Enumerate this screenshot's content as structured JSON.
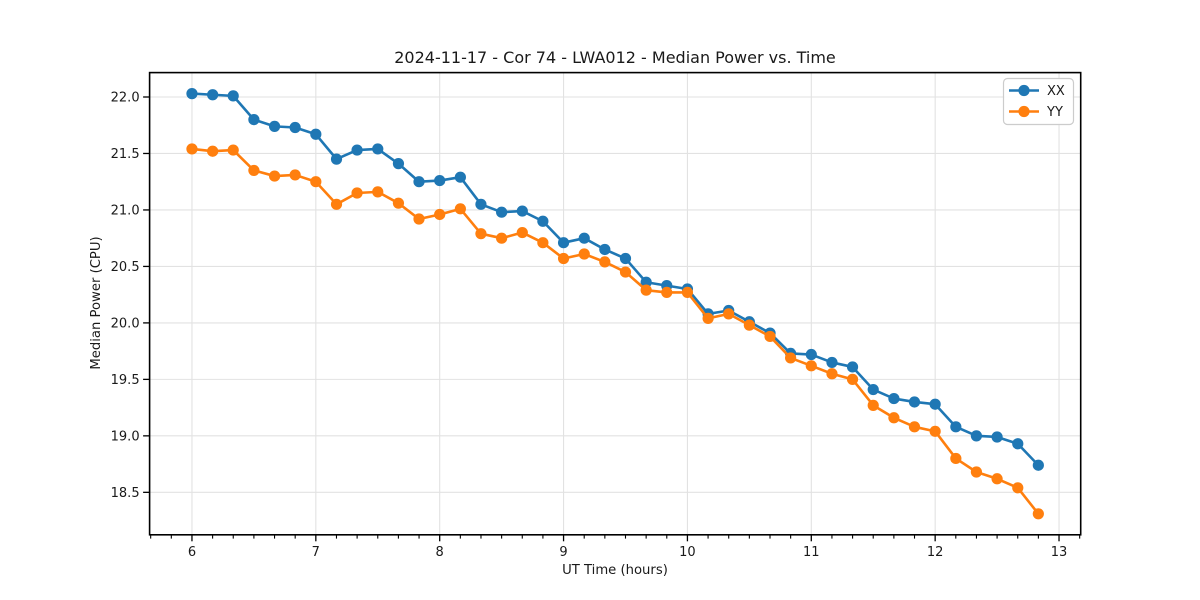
{
  "window": {
    "background": "#ffffff"
  },
  "chart_data": {
    "type": "line",
    "title": "2024-11-17 - Cor 74 - LWA012 - Median Power vs. Time",
    "xlabel": "UT Time (hours)",
    "ylabel": "Median Power (CPU)",
    "grid": true,
    "legend_position": "upper right",
    "marker": "circle",
    "xlim": [
      5.658,
      13.175
    ],
    "ylim": [
      18.124,
      22.216
    ],
    "x_major_ticks": [
      6,
      7,
      8,
      9,
      10,
      11,
      12,
      13
    ],
    "x_minor_tick_step": 0.1666667,
    "y_ticks": [
      18.5,
      19.0,
      19.5,
      20.0,
      20.5,
      21.0,
      21.5,
      22.0
    ],
    "y_tick_labels": [
      "18.5",
      "19.0",
      "19.5",
      "20.0",
      "20.5",
      "21.0",
      "21.5",
      "22.0"
    ],
    "colors": {
      "grid": "#e2e2e2",
      "spine": "#000000",
      "text": "#1a1a1a"
    },
    "x": [
      6.0,
      6.167,
      6.333,
      6.5,
      6.667,
      6.833,
      7.0,
      7.167,
      7.333,
      7.5,
      7.667,
      7.833,
      8.0,
      8.167,
      8.333,
      8.5,
      8.667,
      8.833,
      9.0,
      9.167,
      9.333,
      9.5,
      9.667,
      9.833,
      10.0,
      10.167,
      10.333,
      10.5,
      10.667,
      10.833,
      11.0,
      11.167,
      11.333,
      11.5,
      11.667,
      11.833,
      12.0,
      12.167,
      12.333,
      12.5,
      12.667,
      12.833
    ],
    "series": [
      {
        "name": "XX",
        "color": "#1f77b4",
        "values": [
          22.03,
          22.02,
          22.01,
          21.8,
          21.74,
          21.73,
          21.67,
          21.45,
          21.53,
          21.54,
          21.41,
          21.25,
          21.26,
          21.29,
          21.05,
          20.98,
          20.99,
          20.9,
          20.71,
          20.75,
          20.65,
          20.57,
          20.36,
          20.33,
          20.3,
          20.08,
          20.11,
          20.01,
          19.91,
          19.73,
          19.72,
          19.65,
          19.61,
          19.41,
          19.33,
          19.3,
          19.28,
          19.08,
          19.0,
          18.99,
          18.93,
          18.74
        ]
      },
      {
        "name": "YY",
        "color": "#ff7f0e",
        "values": [
          21.54,
          21.52,
          21.53,
          21.35,
          21.3,
          21.31,
          21.25,
          21.05,
          21.15,
          21.16,
          21.06,
          20.92,
          20.96,
          21.01,
          20.79,
          20.75,
          20.8,
          20.71,
          20.57,
          20.61,
          20.54,
          20.45,
          20.29,
          20.27,
          20.27,
          20.04,
          20.08,
          19.98,
          19.88,
          19.69,
          19.62,
          19.55,
          19.5,
          19.27,
          19.16,
          19.08,
          19.04,
          18.8,
          18.68,
          18.62,
          18.54,
          18.31
        ]
      }
    ]
  }
}
